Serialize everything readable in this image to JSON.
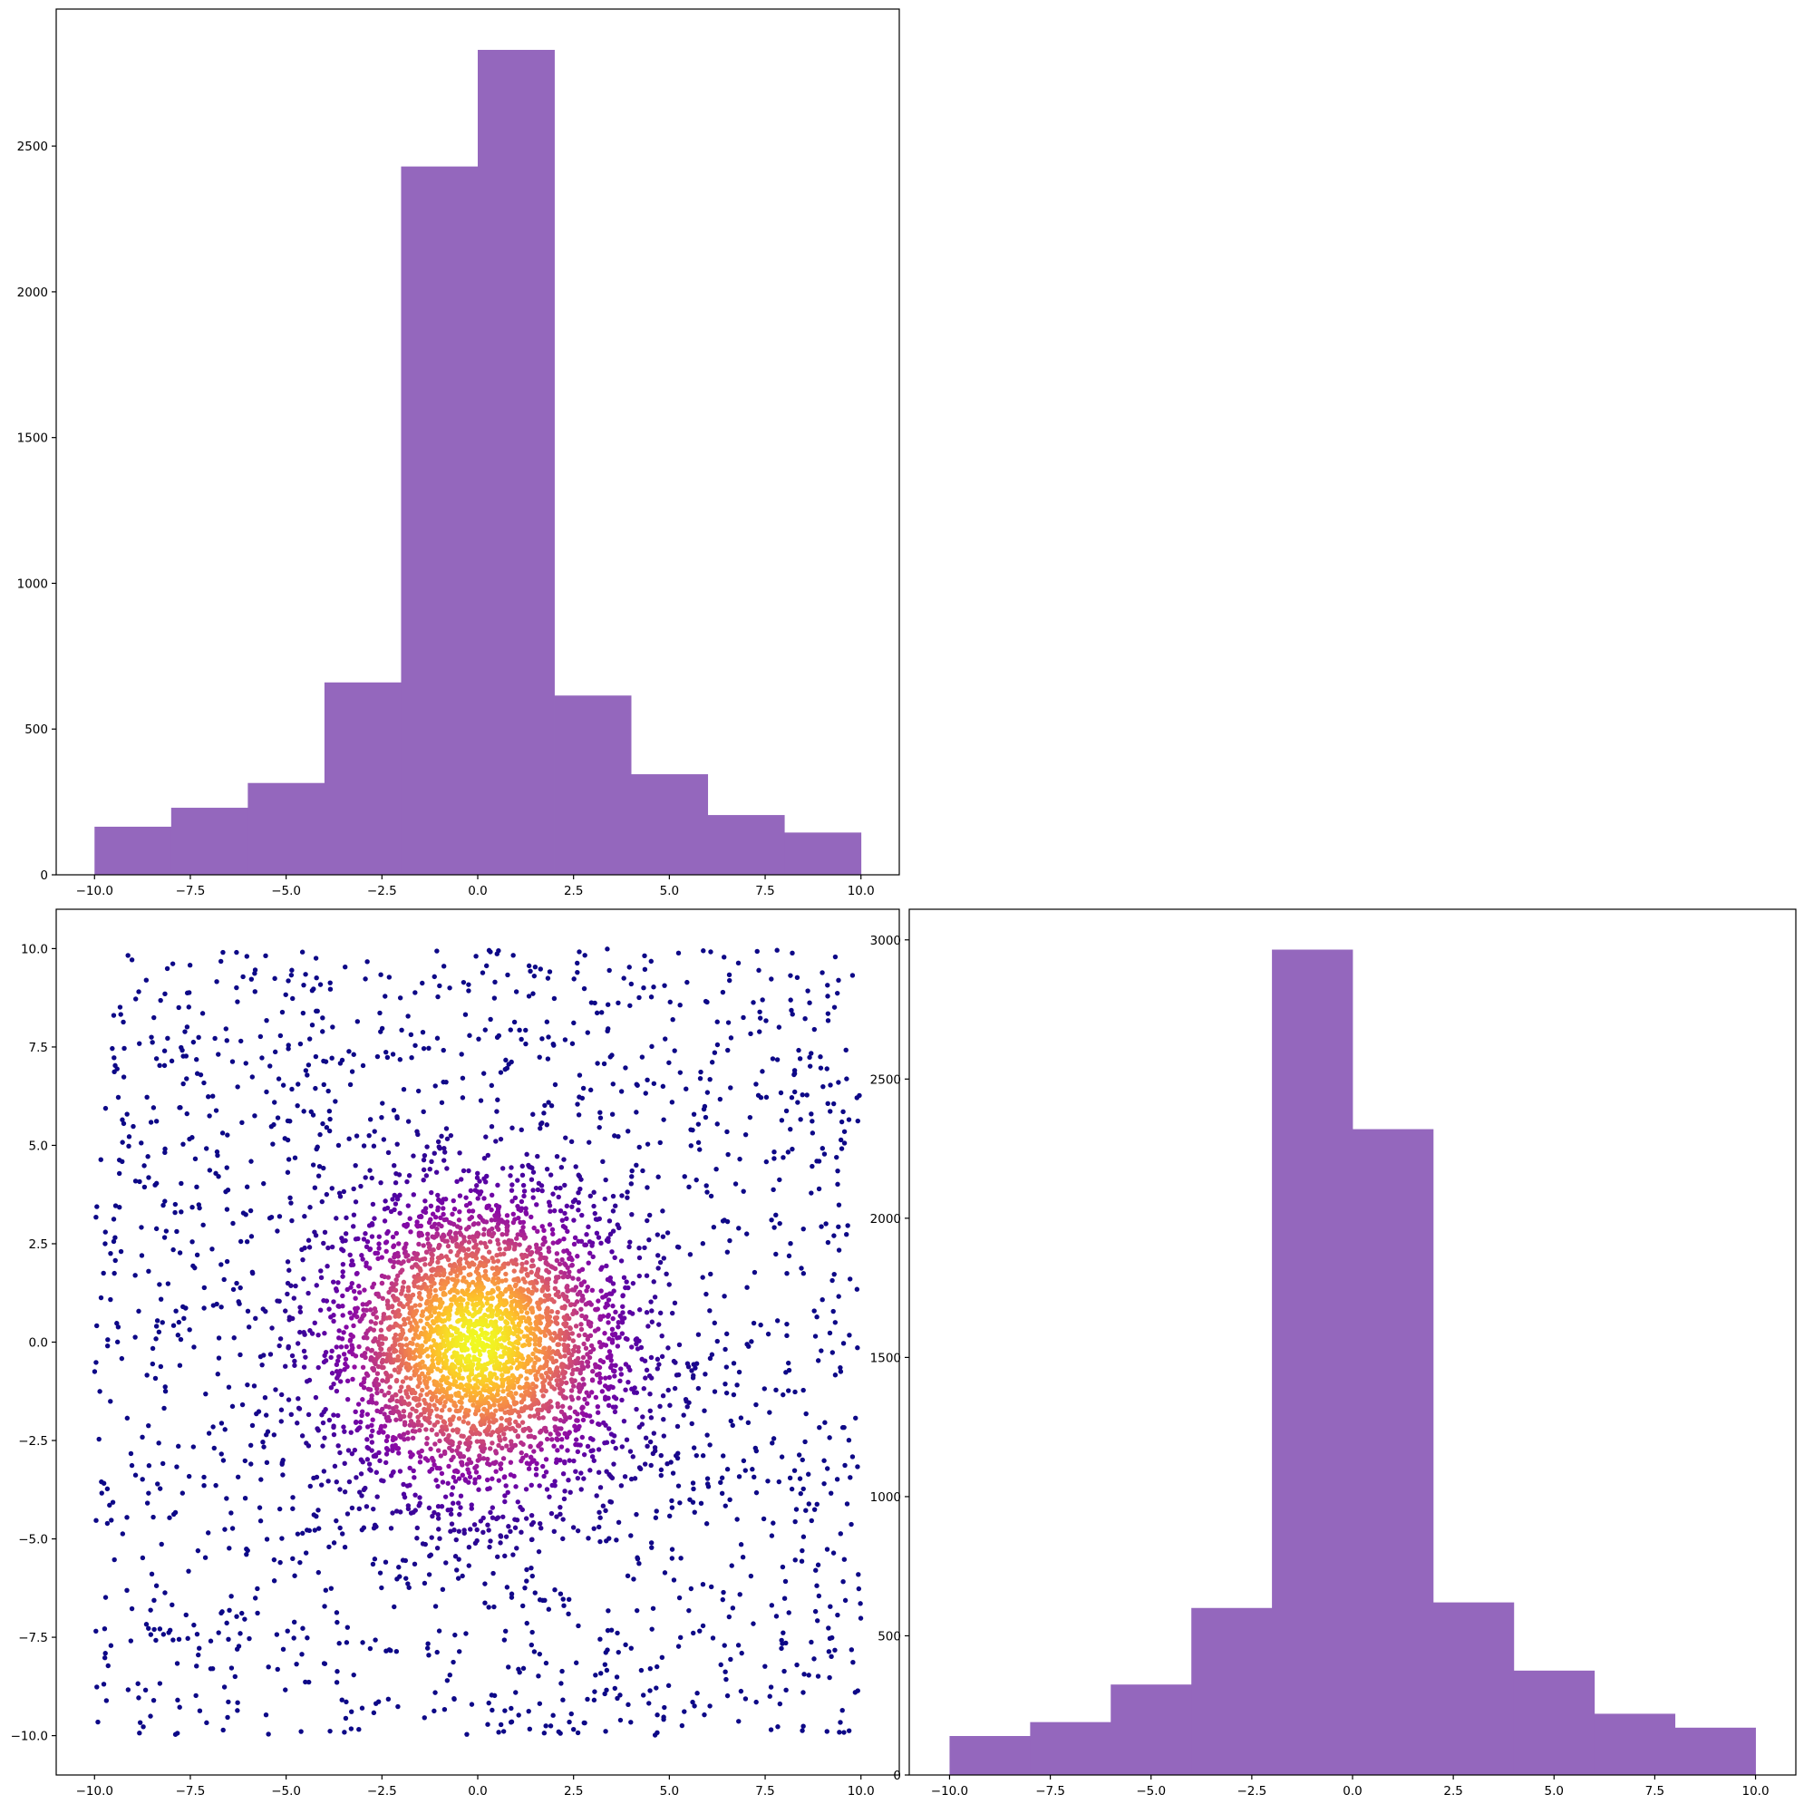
{
  "chart_data": [
    {
      "panel": "top-left",
      "type": "bar",
      "subtype": "histogram",
      "color": "#9467bd",
      "bin_edges": [
        -10,
        -8,
        -6,
        -4,
        -2,
        0,
        2,
        4,
        6,
        8,
        10
      ],
      "counts": [
        165,
        230,
        315,
        660,
        2430,
        2830,
        615,
        345,
        205,
        145
      ],
      "xlim": [
        -11,
        11
      ],
      "ylim": [
        0,
        2970
      ],
      "xticks": [
        -10.0,
        -7.5,
        -5.0,
        -2.5,
        0.0,
        2.5,
        5.0,
        7.5,
        10.0
      ],
      "xtick_labels": [
        "−10.0",
        "−7.5",
        "−5.0",
        "−2.5",
        "0.0",
        "2.5",
        "5.0",
        "7.5",
        "10.0"
      ],
      "yticks": [
        0,
        500,
        1000,
        1500,
        2000,
        2500
      ],
      "ytick_labels": [
        "0",
        "500",
        "1000",
        "1500",
        "2000",
        "2500"
      ]
    },
    {
      "panel": "bottom-left",
      "type": "scatter",
      "colormap": "plasma",
      "color_meaning": "point density (purple sparse → yellow dense at center)",
      "distribution": "about 5000 points: uniform on [−10, 10]² plus a dense normal cluster centered at (0, 0)",
      "xlim": [
        -11,
        11
      ],
      "ylim": [
        -11,
        11
      ],
      "xticks": [
        -10.0,
        -7.5,
        -5.0,
        -2.5,
        0.0,
        2.5,
        5.0,
        7.5,
        10.0
      ],
      "xtick_labels": [
        "−10.0",
        "−7.5",
        "−5.0",
        "−2.5",
        "0.0",
        "2.5",
        "5.0",
        "7.5",
        "10.0"
      ],
      "yticks": [
        -10.0,
        -7.5,
        -5.0,
        -2.5,
        0.0,
        2.5,
        5.0,
        7.5,
        10.0
      ],
      "ytick_labels": [
        "−10.0",
        "−7.5",
        "−5.0",
        "−2.5",
        "0.0",
        "2.5",
        "5.0",
        "7.5",
        "10.0"
      ]
    },
    {
      "panel": "bottom-right",
      "type": "bar",
      "subtype": "histogram",
      "color": "#9467bd",
      "bin_edges": [
        -10,
        -8,
        -6,
        -4,
        -2,
        0,
        2,
        4,
        6,
        8,
        10
      ],
      "counts": [
        140,
        190,
        325,
        600,
        2965,
        2320,
        620,
        375,
        220,
        170
      ],
      "xlim": [
        -11,
        11
      ],
      "ylim": [
        0,
        3110
      ],
      "xticks": [
        -10.0,
        -7.5,
        -5.0,
        -2.5,
        0.0,
        2.5,
        5.0,
        7.5,
        10.0
      ],
      "xtick_labels": [
        "−10.0",
        "−7.5",
        "−5.0",
        "−2.5",
        "0.0",
        "2.5",
        "5.0",
        "7.5",
        "10.0"
      ],
      "yticks": [
        0,
        500,
        1000,
        1500,
        2000,
        2500,
        3000
      ],
      "ytick_labels": [
        "0",
        "500",
        "1000",
        "1500",
        "2000",
        "2500",
        "3000"
      ]
    }
  ]
}
